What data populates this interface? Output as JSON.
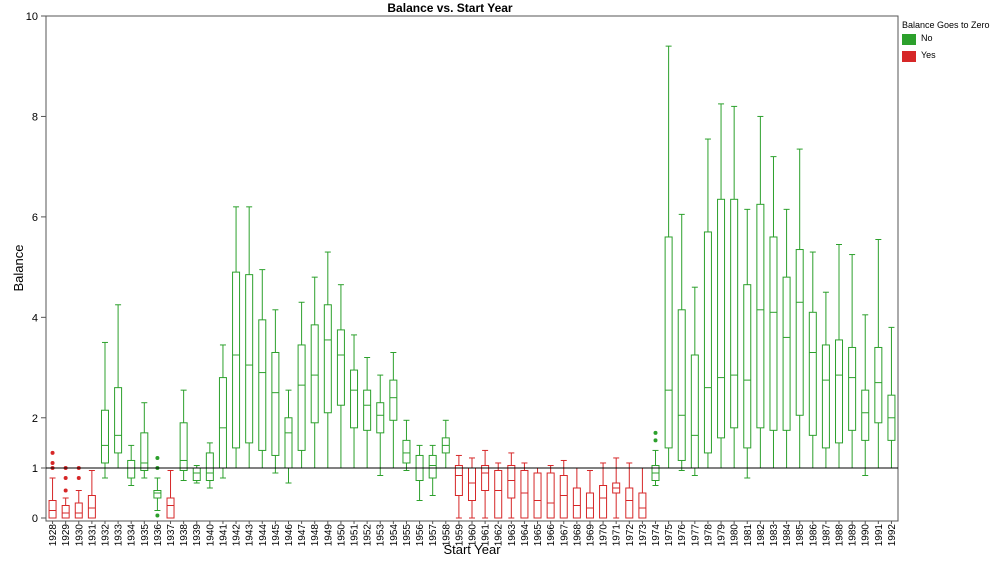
{
  "chart_data": {
    "type": "box",
    "title": "Balance vs. Start Year",
    "xlabel": "Start Year",
    "ylabel": "Balance",
    "ylim": [
      0,
      10
    ],
    "yticks": [
      "0",
      "1",
      "2",
      "4",
      "6",
      "8",
      "10"
    ],
    "reference_line": 1,
    "legend": {
      "title": "Balance Goes to Zero",
      "position": "right",
      "items": [
        {
          "label": "No",
          "color": "#2ca02c"
        },
        {
          "label": "Yes",
          "color": "#d62728"
        }
      ]
    },
    "boxes": [
      {
        "year": "1928",
        "group": "Yes",
        "min": 0.0,
        "q1": 0.0,
        "median": 0.15,
        "q3": 0.35,
        "max": 0.8,
        "outliers": [
          1.0,
          1.1,
          1.3
        ]
      },
      {
        "year": "1929",
        "group": "Yes",
        "min": 0.0,
        "q1": 0.0,
        "median": 0.1,
        "q3": 0.25,
        "max": 0.4,
        "outliers": [
          0.55,
          0.8,
          1.0
        ]
      },
      {
        "year": "1930",
        "group": "Yes",
        "min": 0.0,
        "q1": 0.0,
        "median": 0.1,
        "q3": 0.3,
        "max": 0.55,
        "outliers": [
          0.8,
          1.0
        ]
      },
      {
        "year": "1931",
        "group": "Yes",
        "min": 0.0,
        "q1": 0.0,
        "median": 0.2,
        "q3": 0.45,
        "max": 0.95,
        "outliers": []
      },
      {
        "year": "1932",
        "group": "No",
        "min": 0.8,
        "q1": 1.1,
        "median": 1.45,
        "q3": 2.15,
        "max": 3.5,
        "outliers": []
      },
      {
        "year": "1933",
        "group": "No",
        "min": 1.0,
        "q1": 1.3,
        "median": 1.65,
        "q3": 2.6,
        "max": 4.25,
        "outliers": []
      },
      {
        "year": "1934",
        "group": "No",
        "min": 0.65,
        "q1": 0.8,
        "median": 1.0,
        "q3": 1.15,
        "max": 1.45,
        "outliers": []
      },
      {
        "year": "1935",
        "group": "No",
        "min": 0.8,
        "q1": 0.95,
        "median": 1.1,
        "q3": 1.7,
        "max": 2.3,
        "outliers": []
      },
      {
        "year": "1936",
        "group": "No",
        "min": 0.15,
        "q1": 0.4,
        "median": 0.5,
        "q3": 0.55,
        "max": 0.8,
        "outliers": [
          0.05,
          1.0,
          1.2
        ]
      },
      {
        "year": "1937",
        "group": "Yes",
        "min": 0.0,
        "q1": 0.0,
        "median": 0.25,
        "q3": 0.4,
        "max": 0.95,
        "outliers": []
      },
      {
        "year": "1938",
        "group": "No",
        "min": 0.75,
        "q1": 0.95,
        "median": 1.15,
        "q3": 1.9,
        "max": 2.55,
        "outliers": []
      },
      {
        "year": "1939",
        "group": "No",
        "min": 0.7,
        "q1": 0.75,
        "median": 0.9,
        "q3": 1.0,
        "max": 1.05,
        "outliers": []
      },
      {
        "year": "1940",
        "group": "No",
        "min": 0.6,
        "q1": 0.75,
        "median": 0.9,
        "q3": 1.3,
        "max": 1.5,
        "outliers": []
      },
      {
        "year": "1941",
        "group": "No",
        "min": 0.8,
        "q1": 1.0,
        "median": 1.8,
        "q3": 2.8,
        "max": 3.45,
        "outliers": []
      },
      {
        "year": "1942",
        "group": "No",
        "min": 1.0,
        "q1": 1.4,
        "median": 3.25,
        "q3": 4.9,
        "max": 6.2,
        "outliers": []
      },
      {
        "year": "1943",
        "group": "No",
        "min": 1.0,
        "q1": 1.5,
        "median": 3.05,
        "q3": 4.85,
        "max": 6.2,
        "outliers": []
      },
      {
        "year": "1944",
        "group": "No",
        "min": 1.0,
        "q1": 1.35,
        "median": 2.9,
        "q3": 3.95,
        "max": 4.95,
        "outliers": []
      },
      {
        "year": "1945",
        "group": "No",
        "min": 0.9,
        "q1": 1.25,
        "median": 2.5,
        "q3": 3.3,
        "max": 4.15,
        "outliers": []
      },
      {
        "year": "1946",
        "group": "No",
        "min": 0.7,
        "q1": 1.0,
        "median": 1.7,
        "q3": 2.0,
        "max": 2.55,
        "outliers": []
      },
      {
        "year": "1947",
        "group": "No",
        "min": 1.0,
        "q1": 1.35,
        "median": 2.65,
        "q3": 3.45,
        "max": 4.3,
        "outliers": []
      },
      {
        "year": "1948",
        "group": "No",
        "min": 1.0,
        "q1": 1.9,
        "median": 2.85,
        "q3": 3.85,
        "max": 4.8,
        "outliers": []
      },
      {
        "year": "1949",
        "group": "No",
        "min": 1.0,
        "q1": 2.1,
        "median": 3.55,
        "q3": 4.25,
        "max": 5.3,
        "outliers": []
      },
      {
        "year": "1950",
        "group": "No",
        "min": 1.0,
        "q1": 2.25,
        "median": 3.25,
        "q3": 3.75,
        "max": 4.65,
        "outliers": []
      },
      {
        "year": "1951",
        "group": "No",
        "min": 1.0,
        "q1": 1.8,
        "median": 2.55,
        "q3": 2.95,
        "max": 3.65,
        "outliers": []
      },
      {
        "year": "1952",
        "group": "No",
        "min": 1.0,
        "q1": 1.75,
        "median": 2.25,
        "q3": 2.55,
        "max": 3.2,
        "outliers": []
      },
      {
        "year": "1953",
        "group": "No",
        "min": 0.85,
        "q1": 1.7,
        "median": 2.05,
        "q3": 2.3,
        "max": 2.85,
        "outliers": []
      },
      {
        "year": "1954",
        "group": "No",
        "min": 1.0,
        "q1": 1.95,
        "median": 2.4,
        "q3": 2.75,
        "max": 3.3,
        "outliers": []
      },
      {
        "year": "1955",
        "group": "No",
        "min": 0.95,
        "q1": 1.1,
        "median": 1.3,
        "q3": 1.55,
        "max": 1.95,
        "outliers": []
      },
      {
        "year": "1956",
        "group": "No",
        "min": 0.35,
        "q1": 0.75,
        "median": 1.0,
        "q3": 1.25,
        "max": 1.45,
        "outliers": []
      },
      {
        "year": "1957",
        "group": "No",
        "min": 0.45,
        "q1": 0.8,
        "median": 1.05,
        "q3": 1.25,
        "max": 1.45,
        "outliers": []
      },
      {
        "year": "1958",
        "group": "No",
        "min": 1.0,
        "q1": 1.3,
        "median": 1.45,
        "q3": 1.6,
        "max": 1.95,
        "outliers": []
      },
      {
        "year": "1959",
        "group": "Yes",
        "min": 0.0,
        "q1": 0.45,
        "median": 0.85,
        "q3": 1.05,
        "max": 1.25,
        "outliers": []
      },
      {
        "year": "1960",
        "group": "Yes",
        "min": 0.0,
        "q1": 0.35,
        "median": 0.7,
        "q3": 1.0,
        "max": 1.2,
        "outliers": []
      },
      {
        "year": "1961",
        "group": "Yes",
        "min": 0.0,
        "q1": 0.55,
        "median": 0.9,
        "q3": 1.05,
        "max": 1.35,
        "outliers": []
      },
      {
        "year": "1962",
        "group": "Yes",
        "min": 0.0,
        "q1": 0.0,
        "median": 0.55,
        "q3": 0.95,
        "max": 1.1,
        "outliers": []
      },
      {
        "year": "1963",
        "group": "Yes",
        "min": 0.0,
        "q1": 0.4,
        "median": 0.75,
        "q3": 1.05,
        "max": 1.3,
        "outliers": []
      },
      {
        "year": "1964",
        "group": "Yes",
        "min": 0.0,
        "q1": 0.0,
        "median": 0.5,
        "q3": 0.95,
        "max": 1.1,
        "outliers": []
      },
      {
        "year": "1965",
        "group": "Yes",
        "min": 0.0,
        "q1": 0.0,
        "median": 0.35,
        "q3": 0.9,
        "max": 1.0,
        "outliers": []
      },
      {
        "year": "1966",
        "group": "Yes",
        "min": 0.0,
        "q1": 0.0,
        "median": 0.3,
        "q3": 0.9,
        "max": 1.05,
        "outliers": []
      },
      {
        "year": "1967",
        "group": "Yes",
        "min": 0.0,
        "q1": 0.0,
        "median": 0.45,
        "q3": 0.85,
        "max": 1.15,
        "outliers": []
      },
      {
        "year": "1968",
        "group": "Yes",
        "min": 0.0,
        "q1": 0.0,
        "median": 0.25,
        "q3": 0.6,
        "max": 1.0,
        "outliers": []
      },
      {
        "year": "1969",
        "group": "Yes",
        "min": 0.0,
        "q1": 0.0,
        "median": 0.2,
        "q3": 0.5,
        "max": 0.95,
        "outliers": []
      },
      {
        "year": "1970",
        "group": "Yes",
        "min": 0.0,
        "q1": 0.0,
        "median": 0.4,
        "q3": 0.65,
        "max": 1.1,
        "outliers": []
      },
      {
        "year": "1971",
        "group": "Yes",
        "min": 0.0,
        "q1": 0.5,
        "median": 0.6,
        "q3": 0.7,
        "max": 1.2,
        "outliers": []
      },
      {
        "year": "1972",
        "group": "Yes",
        "min": 0.0,
        "q1": 0.0,
        "median": 0.35,
        "q3": 0.6,
        "max": 1.1,
        "outliers": []
      },
      {
        "year": "1973",
        "group": "Yes",
        "min": 0.0,
        "q1": 0.0,
        "median": 0.2,
        "q3": 0.5,
        "max": 1.0,
        "outliers": []
      },
      {
        "year": "1974",
        "group": "No",
        "min": 0.65,
        "q1": 0.75,
        "median": 0.9,
        "q3": 1.05,
        "max": 1.35,
        "outliers": [
          1.55,
          1.7
        ]
      },
      {
        "year": "1975",
        "group": "No",
        "min": 1.0,
        "q1": 1.4,
        "median": 2.55,
        "q3": 5.6,
        "max": 9.4,
        "outliers": []
      },
      {
        "year": "1976",
        "group": "No",
        "min": 0.95,
        "q1": 1.15,
        "median": 2.05,
        "q3": 4.15,
        "max": 6.05,
        "outliers": []
      },
      {
        "year": "1977",
        "group": "No",
        "min": 0.85,
        "q1": 1.0,
        "median": 1.65,
        "q3": 3.25,
        "max": 4.6,
        "outliers": []
      },
      {
        "year": "1978",
        "group": "No",
        "min": 1.0,
        "q1": 1.3,
        "median": 2.6,
        "q3": 5.7,
        "max": 7.55,
        "outliers": []
      },
      {
        "year": "1979",
        "group": "No",
        "min": 1.0,
        "q1": 1.6,
        "median": 2.8,
        "q3": 6.35,
        "max": 8.25,
        "outliers": []
      },
      {
        "year": "1980",
        "group": "No",
        "min": 1.0,
        "q1": 1.8,
        "median": 2.85,
        "q3": 6.35,
        "max": 8.2,
        "outliers": []
      },
      {
        "year": "1981",
        "group": "No",
        "min": 0.8,
        "q1": 1.4,
        "median": 2.75,
        "q3": 4.65,
        "max": 6.15,
        "outliers": []
      },
      {
        "year": "1982",
        "group": "No",
        "min": 1.0,
        "q1": 1.8,
        "median": 4.15,
        "q3": 6.25,
        "max": 8.0,
        "outliers": []
      },
      {
        "year": "1983",
        "group": "No",
        "min": 1.0,
        "q1": 1.75,
        "median": 4.1,
        "q3": 5.6,
        "max": 7.2,
        "outliers": []
      },
      {
        "year": "1984",
        "group": "No",
        "min": 1.0,
        "q1": 1.75,
        "median": 3.6,
        "q3": 4.8,
        "max": 6.15,
        "outliers": []
      },
      {
        "year": "1985",
        "group": "No",
        "min": 1.0,
        "q1": 2.05,
        "median": 4.3,
        "q3": 5.35,
        "max": 7.35,
        "outliers": []
      },
      {
        "year": "1986",
        "group": "No",
        "min": 1.0,
        "q1": 1.65,
        "median": 3.3,
        "q3": 4.1,
        "max": 5.3,
        "outliers": []
      },
      {
        "year": "1987",
        "group": "No",
        "min": 1.0,
        "q1": 1.4,
        "median": 2.75,
        "q3": 3.45,
        "max": 4.5,
        "outliers": []
      },
      {
        "year": "1988",
        "group": "No",
        "min": 1.0,
        "q1": 1.5,
        "median": 2.85,
        "q3": 3.55,
        "max": 5.45,
        "outliers": []
      },
      {
        "year": "1989",
        "group": "No",
        "min": 1.0,
        "q1": 1.75,
        "median": 2.8,
        "q3": 3.4,
        "max": 5.25,
        "outliers": []
      },
      {
        "year": "1990",
        "group": "No",
        "min": 0.85,
        "q1": 1.55,
        "median": 2.1,
        "q3": 2.55,
        "max": 4.05,
        "outliers": []
      },
      {
        "year": "1991",
        "group": "No",
        "min": 1.0,
        "q1": 1.9,
        "median": 2.7,
        "q3": 3.4,
        "max": 5.55,
        "outliers": []
      },
      {
        "year": "1992",
        "group": "No",
        "min": 1.0,
        "q1": 1.55,
        "median": 2.0,
        "q3": 2.45,
        "max": 3.8,
        "outliers": []
      }
    ]
  }
}
